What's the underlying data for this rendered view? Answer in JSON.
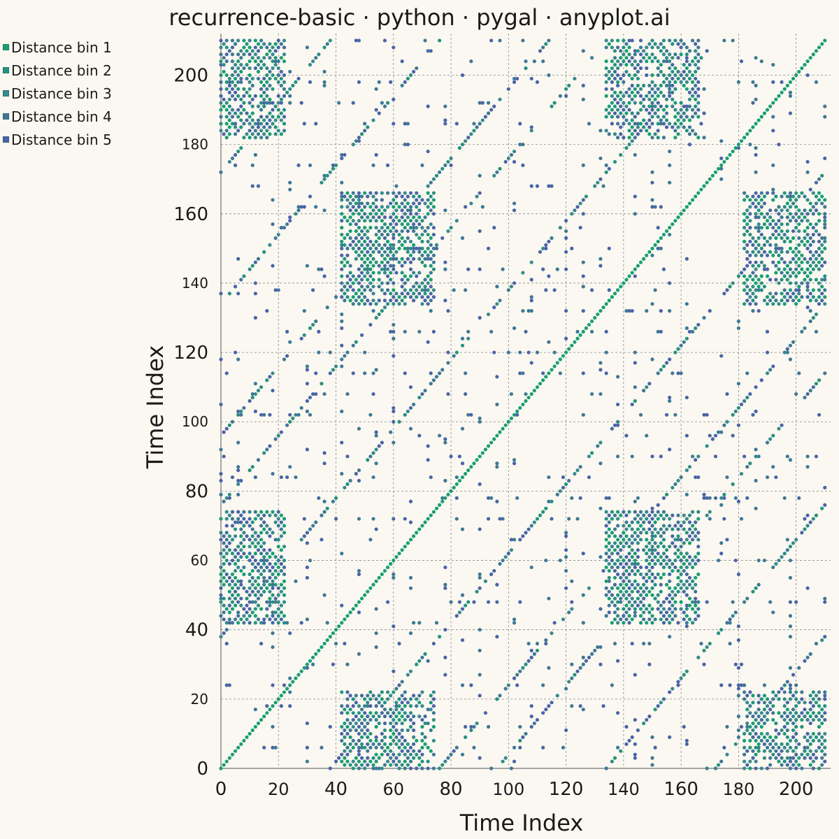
{
  "chart_data": {
    "type": "scatter",
    "title": "recurrence-basic · python · pygal · anyplot.ai",
    "xlabel": "Time Index",
    "ylabel": "Time Index",
    "xlim": [
      0,
      212
    ],
    "ylim": [
      0,
      212
    ],
    "x_ticks": [
      0,
      20,
      40,
      60,
      80,
      100,
      120,
      140,
      160,
      180,
      200
    ],
    "y_ticks": [
      0,
      20,
      40,
      60,
      80,
      100,
      120,
      140,
      160,
      180,
      200
    ],
    "grid": true,
    "legend_position": "top-left",
    "series": [
      {
        "name": "Distance bin 1",
        "color": "#1A9E74"
      },
      {
        "name": "Distance bin 2",
        "color": "#26917F"
      },
      {
        "name": "Distance bin 3",
        "color": "#388A8C"
      },
      {
        "name": "Distance bin 4",
        "color": "#3F7896"
      },
      {
        "name": "Distance bin 5",
        "color": "#4A64A6"
      }
    ],
    "pattern": {
      "diagonal_periods": [
        0,
        38,
        76,
        96,
        134,
        172
      ],
      "block_ranges": [
        [
          0,
          22,
          42,
          74
        ],
        [
          134,
          166,
          42,
          74
        ],
        [
          0,
          22,
          182,
          210
        ],
        [
          134,
          166,
          182,
          210
        ]
      ]
    }
  }
}
